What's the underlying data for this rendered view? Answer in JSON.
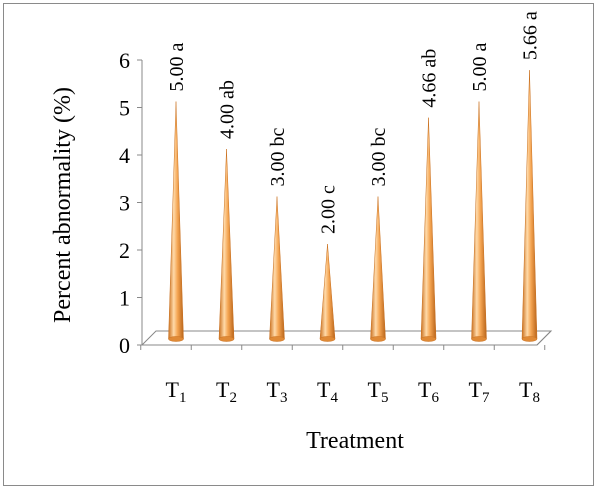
{
  "chart_data": {
    "type": "bar",
    "title": "",
    "xlabel": "Treatment",
    "ylabel": "Percent abnormality (%)",
    "ylim": [
      0,
      6
    ],
    "yticks": [
      0,
      1,
      2,
      3,
      4,
      5,
      6
    ],
    "grid": false,
    "legend": "none",
    "categories": [
      {
        "base": "T",
        "sub": "1"
      },
      {
        "base": "T",
        "sub": "2"
      },
      {
        "base": "T",
        "sub": "3"
      },
      {
        "base": "T",
        "sub": "4"
      },
      {
        "base": "T",
        "sub": "5"
      },
      {
        "base": "T",
        "sub": "6"
      },
      {
        "base": "T",
        "sub": "7"
      },
      {
        "base": "T",
        "sub": "8"
      }
    ],
    "values": [
      5.0,
      4.0,
      3.0,
      2.0,
      3.0,
      4.66,
      5.0,
      5.66
    ],
    "data_labels": [
      "5.00 a",
      "4.00 ab",
      "3.00 bc",
      "2.00 c",
      "3.00 bc",
      "4.66 ab",
      "5.00 a",
      "5.66 a"
    ],
    "bar_shape": "cone",
    "colors": {
      "bar_light": "#ffd9a8",
      "bar_mid": "#f5a552",
      "bar_dark": "#c9701f",
      "floor": "#ffffff",
      "axis": "#888888"
    }
  }
}
